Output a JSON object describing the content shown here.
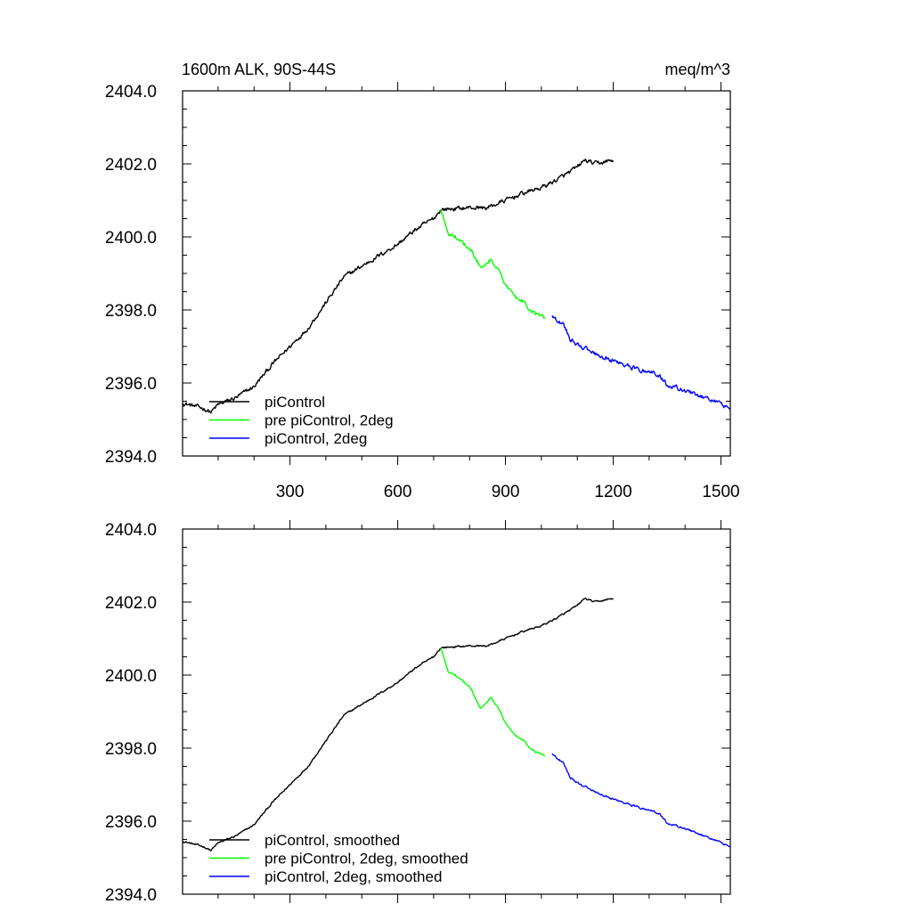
{
  "chart_data": [
    {
      "type": "line",
      "title_left": "1600m ALK, 90S-44S",
      "title_right": "meq/m^3",
      "xlabel": "",
      "ylabel": "",
      "xlim": [
        1,
        1526
      ],
      "ylim": [
        2394.0,
        2404.0
      ],
      "x_ticks": [
        300,
        600,
        900,
        1200,
        1500
      ],
      "x_tick_labels": [
        "300",
        "600",
        "900",
        "1200",
        "1500"
      ],
      "y_ticks": [
        2394.0,
        2396.0,
        2398.0,
        2400.0,
        2402.0,
        2404.0
      ],
      "y_tick_labels": [
        "2394.0",
        "2396.0",
        "2398.0",
        "2400.0",
        "2402.0",
        "2404.0"
      ],
      "show_x_tick_labels": true,
      "noise": 0.12,
      "legend_position": "bottom-left",
      "series": [
        {
          "name": "piControl",
          "color": "#000000",
          "points": [
            [
              1,
              2395.45
            ],
            [
              60,
              2395.3
            ],
            [
              80,
              2395.2
            ],
            [
              100,
              2395.4
            ],
            [
              150,
              2395.6
            ],
            [
              200,
              2395.9
            ],
            [
              250,
              2396.5
            ],
            [
              300,
              2397.0
            ],
            [
              350,
              2397.5
            ],
            [
              400,
              2398.2
            ],
            [
              450,
              2398.9
            ],
            [
              500,
              2399.2
            ],
            [
              550,
              2399.5
            ],
            [
              600,
              2399.8
            ],
            [
              650,
              2400.2
            ],
            [
              700,
              2400.5
            ],
            [
              720,
              2400.75
            ],
            [
              800,
              2400.8
            ],
            [
              850,
              2400.8
            ],
            [
              900,
              2401.0
            ],
            [
              950,
              2401.2
            ],
            [
              1000,
              2401.35
            ],
            [
              1050,
              2401.6
            ],
            [
              1100,
              2401.9
            ],
            [
              1120,
              2402.1
            ],
            [
              1150,
              2402.0
            ],
            [
              1200,
              2402.1
            ]
          ]
        },
        {
          "name": "pre piControl, 2deg",
          "color": "#00ff00",
          "points": [
            [
              720,
              2400.75
            ],
            [
              740,
              2400.1
            ],
            [
              760,
              2400.0
            ],
            [
              800,
              2399.7
            ],
            [
              830,
              2399.2
            ],
            [
              860,
              2399.4
            ],
            [
              880,
              2399.1
            ],
            [
              900,
              2398.7
            ],
            [
              920,
              2398.4
            ],
            [
              950,
              2398.2
            ],
            [
              980,
              2397.9
            ],
            [
              1010,
              2397.8
            ]
          ]
        },
        {
          "name": "piControl, 2deg",
          "color": "#0000ff",
          "points": [
            [
              1030,
              2397.85
            ],
            [
              1060,
              2397.6
            ],
            [
              1080,
              2397.2
            ],
            [
              1100,
              2397.05
            ],
            [
              1150,
              2396.8
            ],
            [
              1200,
              2396.6
            ],
            [
              1250,
              2396.45
            ],
            [
              1300,
              2396.3
            ],
            [
              1330,
              2396.2
            ],
            [
              1350,
              2395.95
            ],
            [
              1400,
              2395.8
            ],
            [
              1450,
              2395.6
            ],
            [
              1500,
              2395.4
            ],
            [
              1526,
              2395.3
            ]
          ]
        }
      ]
    },
    {
      "type": "line",
      "xlabel": "",
      "ylabel": "",
      "xlim": [
        1,
        1526
      ],
      "ylim": [
        2394.0,
        2404.0
      ],
      "x_ticks": [
        300,
        600,
        900,
        1200,
        1500
      ],
      "y_ticks": [
        2394.0,
        2396.0,
        2398.0,
        2400.0,
        2402.0,
        2404.0
      ],
      "y_tick_labels": [
        "2394.0",
        "2396.0",
        "2398.0",
        "2400.0",
        "2402.0",
        "2404.0"
      ],
      "show_x_tick_labels": false,
      "noise": 0.05,
      "legend_position": "bottom-left",
      "series": [
        {
          "name": "piControl, smoothed",
          "color": "#000000",
          "points": [
            [
              1,
              2395.45
            ],
            [
              60,
              2395.3
            ],
            [
              80,
              2395.2
            ],
            [
              100,
              2395.4
            ],
            [
              150,
              2395.6
            ],
            [
              200,
              2395.9
            ],
            [
              250,
              2396.5
            ],
            [
              300,
              2397.0
            ],
            [
              350,
              2397.5
            ],
            [
              400,
              2398.2
            ],
            [
              450,
              2398.9
            ],
            [
              500,
              2399.2
            ],
            [
              550,
              2399.5
            ],
            [
              600,
              2399.8
            ],
            [
              650,
              2400.2
            ],
            [
              700,
              2400.5
            ],
            [
              720,
              2400.75
            ],
            [
              800,
              2400.8
            ],
            [
              850,
              2400.8
            ],
            [
              900,
              2401.0
            ],
            [
              950,
              2401.2
            ],
            [
              1000,
              2401.35
            ],
            [
              1050,
              2401.6
            ],
            [
              1100,
              2401.9
            ],
            [
              1120,
              2402.1
            ],
            [
              1150,
              2402.0
            ],
            [
              1200,
              2402.1
            ]
          ]
        },
        {
          "name": "pre piControl, 2deg, smoothed",
          "color": "#00ff00",
          "points": [
            [
              720,
              2400.75
            ],
            [
              740,
              2400.1
            ],
            [
              760,
              2400.0
            ],
            [
              800,
              2399.7
            ],
            [
              830,
              2399.1
            ],
            [
              860,
              2399.4
            ],
            [
              880,
              2399.1
            ],
            [
              900,
              2398.7
            ],
            [
              920,
              2398.4
            ],
            [
              950,
              2398.2
            ],
            [
              980,
              2397.9
            ],
            [
              1010,
              2397.8
            ]
          ]
        },
        {
          "name": "piControl, 2deg, smoothed",
          "color": "#0000ff",
          "points": [
            [
              1030,
              2397.85
            ],
            [
              1060,
              2397.6
            ],
            [
              1080,
              2397.2
            ],
            [
              1100,
              2397.05
            ],
            [
              1150,
              2396.8
            ],
            [
              1200,
              2396.6
            ],
            [
              1250,
              2396.45
            ],
            [
              1300,
              2396.3
            ],
            [
              1330,
              2396.2
            ],
            [
              1350,
              2395.95
            ],
            [
              1400,
              2395.8
            ],
            [
              1450,
              2395.6
            ],
            [
              1500,
              2395.4
            ],
            [
              1526,
              2395.3
            ]
          ]
        }
      ]
    }
  ]
}
